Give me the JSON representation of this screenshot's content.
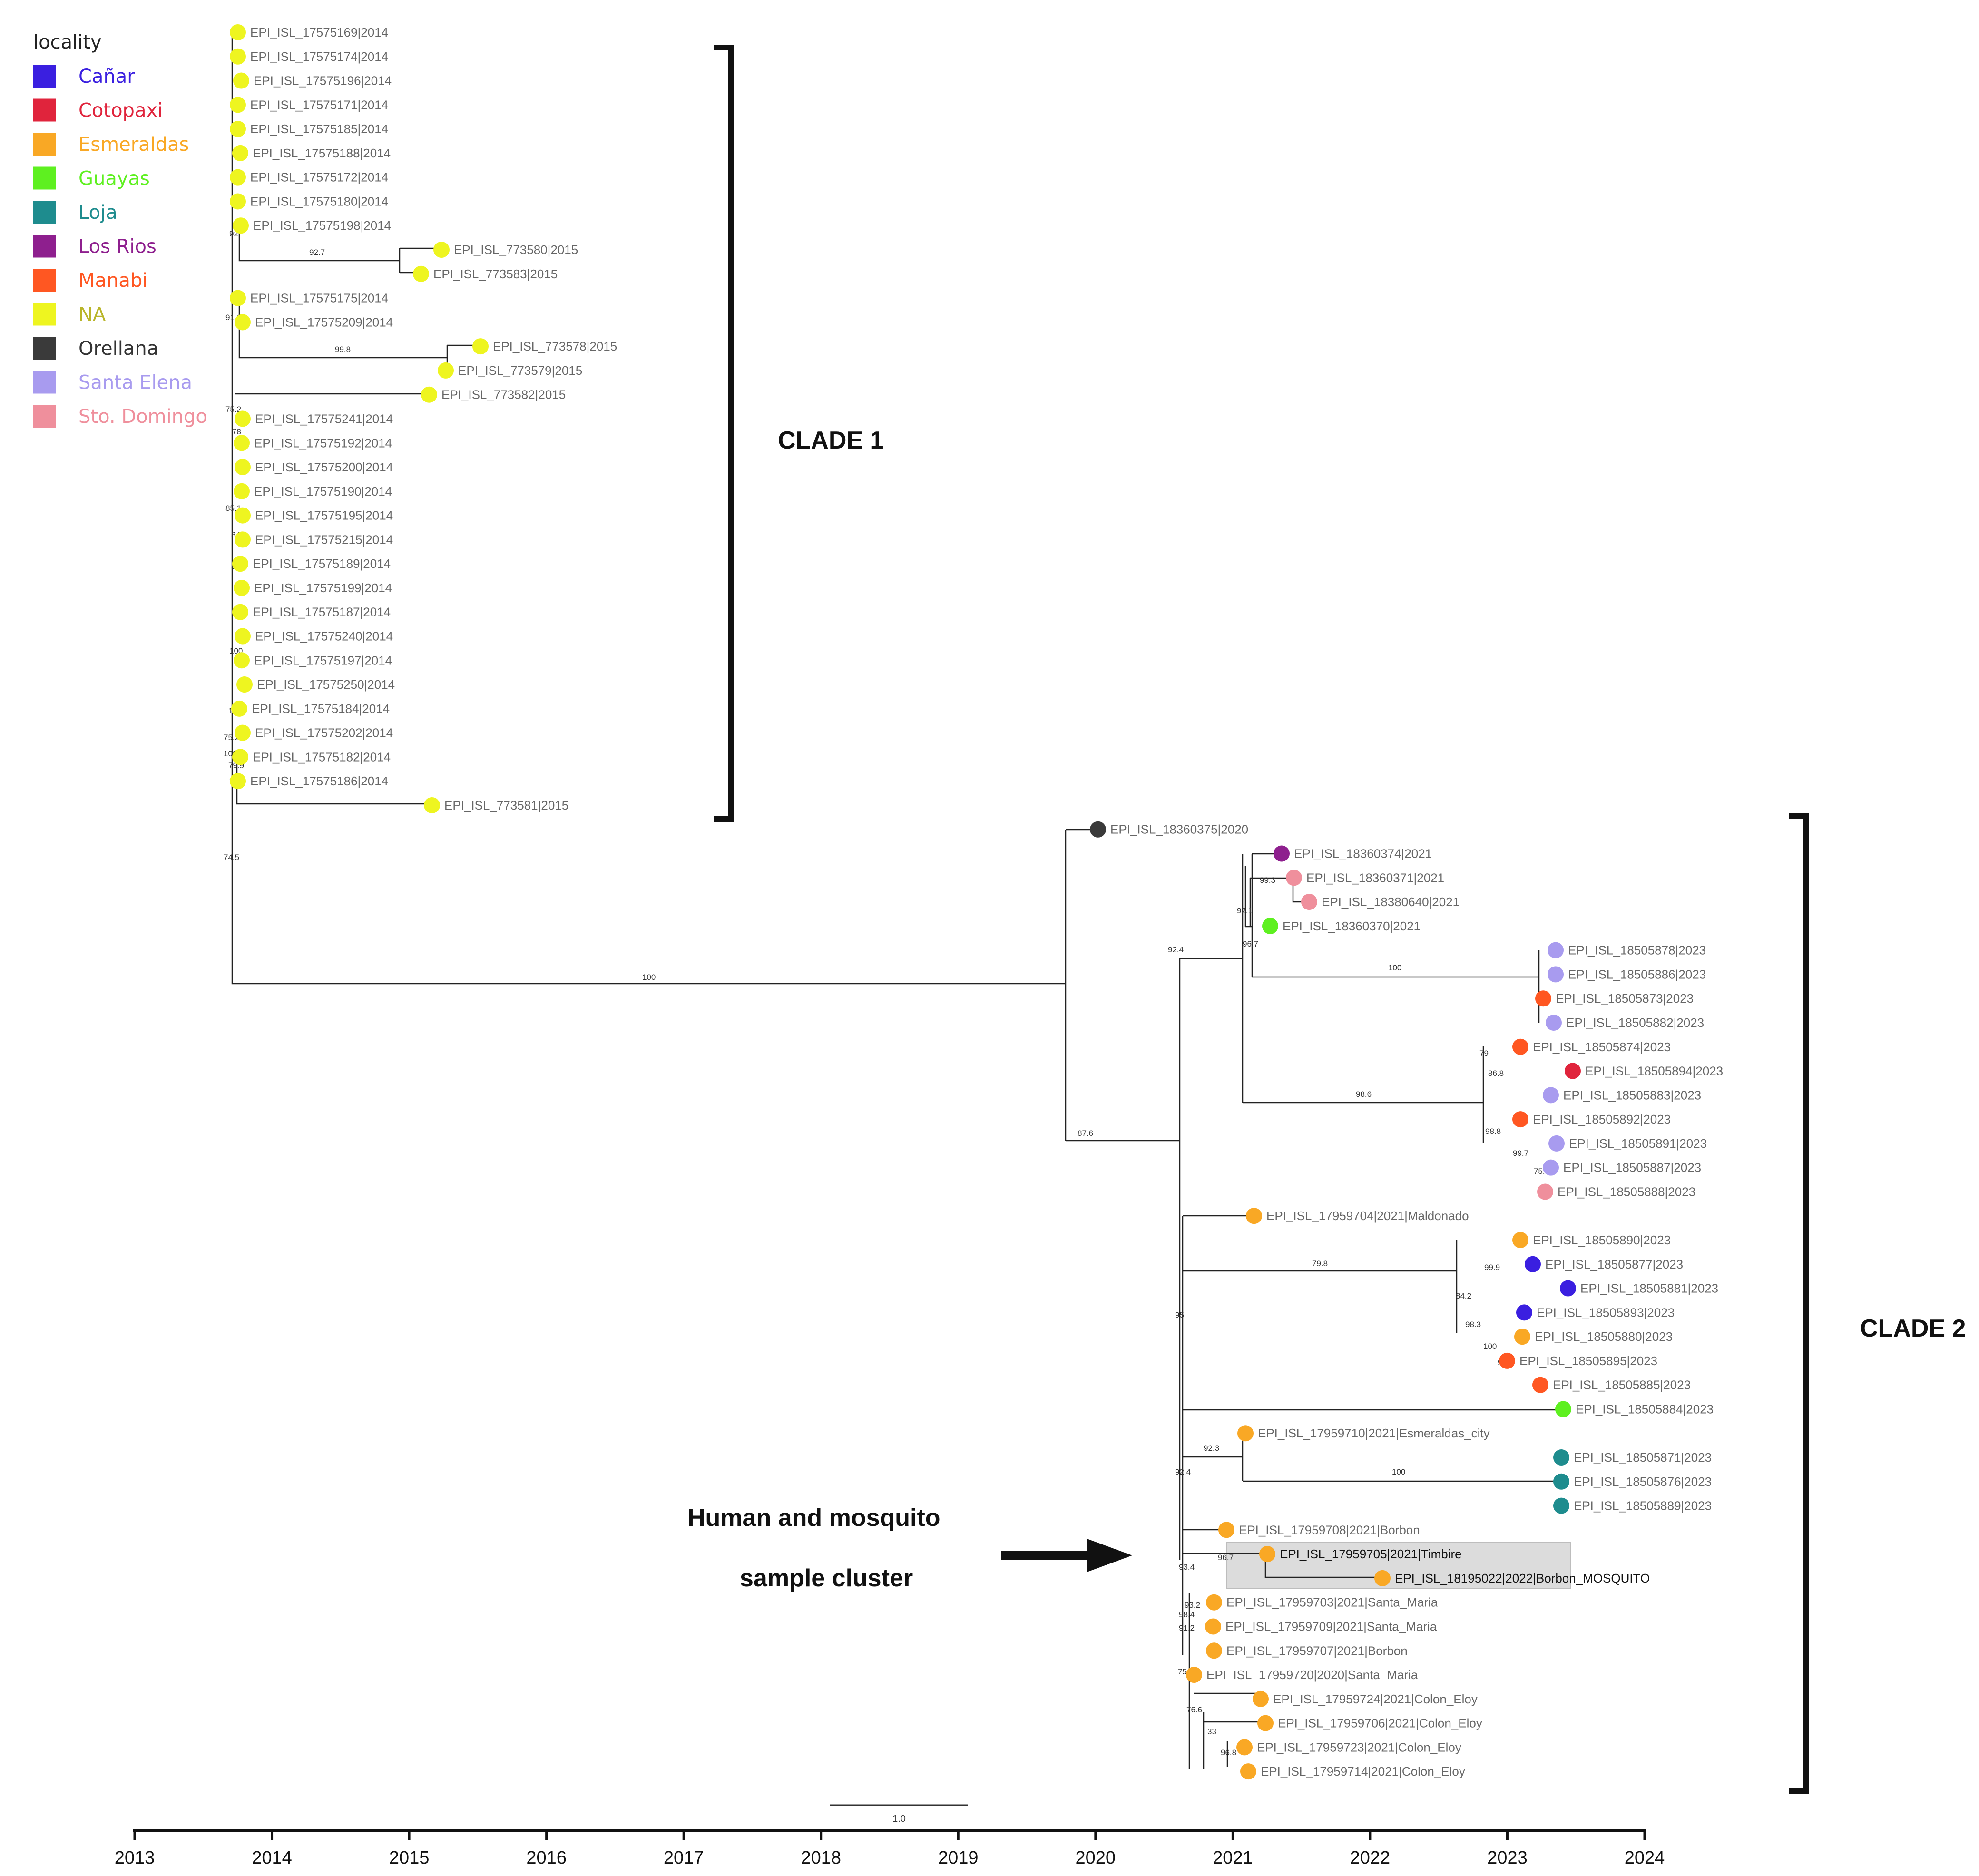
{
  "legend": {
    "title": "locality",
    "items": [
      {
        "label": "Cañar",
        "color": "#3a1fe0"
      },
      {
        "label": "Cotopaxi",
        "color": "#e0243c"
      },
      {
        "label": "Esmeraldas",
        "color": "#f9a825"
      },
      {
        "label": "Guayas",
        "color": "#5ef020"
      },
      {
        "label": "Loja",
        "color": "#1e8c8e"
      },
      {
        "label": "Los Rios",
        "color": "#8e1f8e"
      },
      {
        "label": "Manabi",
        "color": "#ff5722"
      },
      {
        "label": "NA",
        "color": "#eef520"
      },
      {
        "label": "Orellana",
        "color": "#3a3a3a"
      },
      {
        "label": "Santa Elena",
        "color": "#a89bef"
      },
      {
        "label": "Sto. Domingo",
        "color": "#ef8f9c"
      }
    ]
  },
  "clades": {
    "clade1": "CLADE 1",
    "clade2": "CLADE 2"
  },
  "annotation": {
    "line1": "Human and mosquito",
    "line2": "sample cluster"
  },
  "axis": {
    "ticks": [
      "2013",
      "2014",
      "2015",
      "2016",
      "2017",
      "2018",
      "2019",
      "2020",
      "2021",
      "2022",
      "2023",
      "2024"
    ]
  },
  "scale_bar": {
    "label": "1.0"
  },
  "tips": [
    {
      "label": "EPI_ISL_17575169|2014",
      "color": "NA"
    },
    {
      "label": "EPI_ISL_17575174|2014",
      "color": "NA"
    },
    {
      "label": "EPI_ISL_17575196|2014",
      "color": "NA"
    },
    {
      "label": "EPI_ISL_17575171|2014",
      "color": "NA"
    },
    {
      "label": "EPI_ISL_17575185|2014",
      "color": "NA"
    },
    {
      "label": "EPI_ISL_17575188|2014",
      "color": "NA"
    },
    {
      "label": "EPI_ISL_17575172|2014",
      "color": "NA"
    },
    {
      "label": "EPI_ISL_17575180|2014",
      "color": "NA"
    },
    {
      "label": "EPI_ISL_17575198|2014",
      "color": "NA"
    },
    {
      "label": "EPI_ISL_773580|2015",
      "color": "NA"
    },
    {
      "label": "EPI_ISL_773583|2015",
      "color": "NA"
    },
    {
      "label": "EPI_ISL_17575175|2014",
      "color": "NA"
    },
    {
      "label": "EPI_ISL_17575209|2014",
      "color": "NA"
    },
    {
      "label": "EPI_ISL_773578|2015",
      "color": "NA"
    },
    {
      "label": "EPI_ISL_773579|2015",
      "color": "NA"
    },
    {
      "label": "EPI_ISL_773582|2015",
      "color": "NA"
    },
    {
      "label": "EPI_ISL_17575241|2014",
      "color": "NA"
    },
    {
      "label": "EPI_ISL_17575192|2014",
      "color": "NA"
    },
    {
      "label": "EPI_ISL_17575200|2014",
      "color": "NA"
    },
    {
      "label": "EPI_ISL_17575190|2014",
      "color": "NA"
    },
    {
      "label": "EPI_ISL_17575195|2014",
      "color": "NA"
    },
    {
      "label": "EPI_ISL_17575215|2014",
      "color": "NA"
    },
    {
      "label": "EPI_ISL_17575189|2014",
      "color": "NA"
    },
    {
      "label": "EPI_ISL_17575199|2014",
      "color": "NA"
    },
    {
      "label": "EPI_ISL_17575187|2014",
      "color": "NA"
    },
    {
      "label": "EPI_ISL_17575240|2014",
      "color": "NA"
    },
    {
      "label": "EPI_ISL_17575197|2014",
      "color": "NA"
    },
    {
      "label": "EPI_ISL_17575250|2014",
      "color": "NA"
    },
    {
      "label": "EPI_ISL_17575184|2014",
      "color": "NA"
    },
    {
      "label": "EPI_ISL_17575202|2014",
      "color": "NA"
    },
    {
      "label": "EPI_ISL_17575182|2014",
      "color": "NA"
    },
    {
      "label": "EPI_ISL_17575186|2014",
      "color": "NA"
    },
    {
      "label": "EPI_ISL_773581|2015",
      "color": "NA"
    },
    {
      "label": "EPI_ISL_18360375|2020",
      "color": "Orellana"
    },
    {
      "label": "EPI_ISL_18360374|2021",
      "color": "Los Rios"
    },
    {
      "label": "EPI_ISL_18360371|2021",
      "color": "Sto. Domingo"
    },
    {
      "label": "EPI_ISL_18380640|2021",
      "color": "Sto. Domingo"
    },
    {
      "label": "EPI_ISL_18360370|2021",
      "color": "Guayas"
    },
    {
      "label": "EPI_ISL_18505878|2023",
      "color": "Santa Elena"
    },
    {
      "label": "EPI_ISL_18505886|2023",
      "color": "Santa Elena"
    },
    {
      "label": "EPI_ISL_18505873|2023",
      "color": "Manabi"
    },
    {
      "label": "EPI_ISL_18505882|2023",
      "color": "Santa Elena"
    },
    {
      "label": "EPI_ISL_18505874|2023",
      "color": "Manabi"
    },
    {
      "label": "EPI_ISL_18505894|2023",
      "color": "Cotopaxi"
    },
    {
      "label": "EPI_ISL_18505883|2023",
      "color": "Santa Elena"
    },
    {
      "label": "EPI_ISL_18505892|2023",
      "color": "Manabi"
    },
    {
      "label": "EPI_ISL_18505891|2023",
      "color": "Santa Elena"
    },
    {
      "label": "EPI_ISL_18505887|2023",
      "color": "Santa Elena"
    },
    {
      "label": "EPI_ISL_18505888|2023",
      "color": "Sto. Domingo"
    },
    {
      "label": "EPI_ISL_17959704|2021|Maldonado",
      "color": "Esmeraldas"
    },
    {
      "label": "EPI_ISL_18505890|2023",
      "color": "Esmeraldas"
    },
    {
      "label": "EPI_ISL_18505877|2023",
      "color": "Cañar"
    },
    {
      "label": "EPI_ISL_18505881|2023",
      "color": "Cañar"
    },
    {
      "label": "EPI_ISL_18505893|2023",
      "color": "Cañar"
    },
    {
      "label": "EPI_ISL_18505880|2023",
      "color": "Esmeraldas"
    },
    {
      "label": "EPI_ISL_18505895|2023",
      "color": "Manabi"
    },
    {
      "label": "EPI_ISL_18505885|2023",
      "color": "Manabi"
    },
    {
      "label": "EPI_ISL_18505884|2023",
      "color": "Guayas"
    },
    {
      "label": "EPI_ISL_17959710|2021|Esmeraldas_city",
      "color": "Esmeraldas"
    },
    {
      "label": "EPI_ISL_18505871|2023",
      "color": "Loja"
    },
    {
      "label": "EPI_ISL_18505876|2023",
      "color": "Loja"
    },
    {
      "label": "EPI_ISL_18505889|2023",
      "color": "Loja"
    },
    {
      "label": "EPI_ISL_17959708|2021|Borbon",
      "color": "Esmeraldas"
    },
    {
      "label": "EPI_ISL_17959705|2021|Timbire",
      "color": "Esmeraldas",
      "hl": true
    },
    {
      "label": "EPI_ISL_18195022|2022|Borbon_MOSQUITO",
      "color": "Esmeraldas",
      "hl": true
    },
    {
      "label": "EPI_ISL_17959703|2021|Santa_Maria",
      "color": "Esmeraldas"
    },
    {
      "label": "EPI_ISL_17959709|2021|Santa_Maria",
      "color": "Esmeraldas"
    },
    {
      "label": "EPI_ISL_17959707|2021|Borbon",
      "color": "Esmeraldas"
    },
    {
      "label": "EPI_ISL_17959720|2020|Santa_Maria",
      "color": "Esmeraldas"
    },
    {
      "label": "EPI_ISL_17959724|2021|Colon_Eloy",
      "color": "Esmeraldas"
    },
    {
      "label": "EPI_ISL_17959706|2021|Colon_Eloy",
      "color": "Esmeraldas"
    },
    {
      "label": "EPI_ISL_17959723|2021|Colon_Eloy",
      "color": "Esmeraldas"
    },
    {
      "label": "EPI_ISL_17959714|2021|Colon_Eloy",
      "color": "Esmeraldas"
    }
  ],
  "supports": [
    "92",
    "92.7",
    "91.1",
    "99.8",
    "75.2",
    "78",
    "85.1",
    "84.9",
    "85.7",
    "100",
    "100",
    "75.2",
    "100",
    "79.9",
    "75.9",
    "74.5",
    "100",
    "87.6",
    "92.4",
    "92.1",
    "99.3",
    "96.7",
    "100",
    "98.6",
    "79",
    "86.8",
    "98.8",
    "99.7",
    "75.4",
    "95",
    "79.8",
    "84.2",
    "99.9",
    "98.3",
    "100",
    "98.5",
    "92.4",
    "92.3",
    "100",
    "93.4",
    "96.7",
    "93.2",
    "98.4",
    "91.2",
    "75.8",
    "76.6",
    "33",
    "96.8"
  ]
}
